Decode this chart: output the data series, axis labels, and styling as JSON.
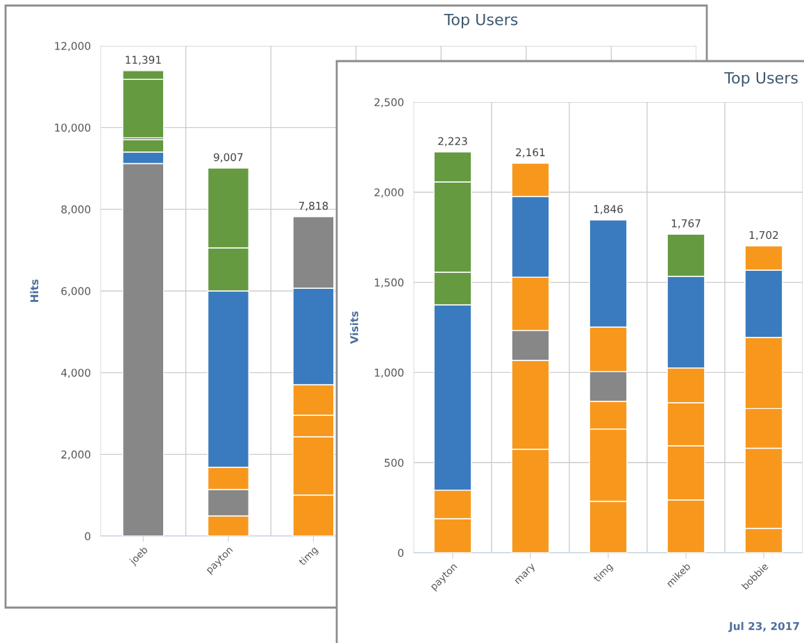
{
  "chart_data": [
    {
      "type": "bar",
      "title": "Top Users",
      "ylabel": "Hits",
      "stacked": true,
      "grid": true,
      "categories": [
        "joeb",
        "payton",
        "timg",
        null,
        null,
        null,
        null
      ],
      "series": [
        {
          "values": [
            9120,
            493,
            1003,
            null,
            null,
            null,
            null
          ],
          "colors": [
            "#878787",
            "#f7981d",
            "#f7981d",
            null,
            null,
            null,
            null
          ]
        },
        {
          "values": [
            280,
            646,
            1428,
            null,
            null,
            null,
            null
          ],
          "colors": [
            "#3a7bbf",
            "#878787",
            "#f7981d",
            null,
            null,
            null,
            null
          ]
        },
        {
          "values": [
            300,
            544,
            527,
            null,
            null,
            null,
            null
          ],
          "colors": [
            "#659a41",
            "#f7981d",
            "#f7981d",
            null,
            null,
            null,
            null
          ]
        },
        {
          "values": [
            50,
            4317,
            748,
            null,
            null,
            null,
            null
          ],
          "colors": [
            "#878787",
            "#3a7bbf",
            "#f7981d",
            null,
            null,
            null,
            null
          ]
        },
        {
          "values": [
            1430,
            1054,
            2362,
            null,
            null,
            null,
            null
          ],
          "colors": [
            "#659a41",
            "#659a41",
            "#3a7bbf",
            null,
            null,
            null,
            null
          ]
        },
        {
          "values": [
            211,
            1953,
            1750,
            null,
            null,
            null,
            null
          ],
          "colors": [
            "#659a41",
            "#659a41",
            "#878787",
            null,
            null,
            null,
            null
          ]
        }
      ],
      "totals": [
        "11,391",
        "9,007",
        "7,818",
        null,
        null,
        null,
        null
      ],
      "ylim": [
        0,
        12000
      ],
      "yticks": [
        0,
        {
          "value": 2000,
          "label": "2,000"
        },
        {
          "value": 4000,
          "label": "4,000"
        },
        {
          "value": 6000,
          "label": "6,000"
        },
        {
          "value": 8000,
          "label": "8,000"
        },
        {
          "value": 10000,
          "label": "10,000"
        },
        {
          "value": 12000,
          "label": "12,000"
        }
      ]
    },
    {
      "type": "bar",
      "title": "Top Users",
      "ylabel": "Visits",
      "stacked": true,
      "grid": true,
      "categories": [
        "payton",
        "mary",
        "timg",
        "mikeb",
        "bobbie"
      ],
      "series": [
        {
          "values": [
            189,
            574,
            285,
            293,
            135
          ],
          "colors": [
            "#f7981d",
            "#f7981d",
            "#f7981d",
            "#f7981d",
            "#f7981d"
          ]
        },
        {
          "values": [
            158,
            493,
            401,
            300,
            445
          ],
          "colors": [
            "#f7981d",
            "#f7981d",
            "#f7981d",
            "#f7981d",
            "#f7981d"
          ]
        },
        {
          "values": [
            1028,
            166,
            154,
            239,
            220
          ],
          "colors": [
            "#3a7bbf",
            "#878787",
            "#f7981d",
            "#f7981d",
            "#f7981d"
          ]
        },
        {
          "values": [
            181,
            296,
            165,
            193,
            394
          ],
          "colors": [
            "#659a41",
            "#f7981d",
            "#878787",
            "#f7981d",
            "#f7981d"
          ]
        },
        {
          "values": [
            501,
            447,
            247,
            508,
            374
          ],
          "colors": [
            "#659a41",
            "#3a7bbf",
            "#f7981d",
            "#3a7bbf",
            "#3a7bbf"
          ]
        },
        {
          "values": [
            166,
            185,
            594,
            234,
            134
          ],
          "colors": [
            "#659a41",
            "#f7981d",
            "#3a7bbf",
            "#659a41",
            "#f7981d"
          ]
        }
      ],
      "totals": [
        "2,223",
        "2,161",
        "1,846",
        "1,767",
        "1,702"
      ],
      "ylim": [
        0,
        2500
      ],
      "yticks": [
        0,
        500,
        {
          "value": 1000,
          "label": "1,000"
        },
        {
          "value": 1500,
          "label": "1,500"
        },
        {
          "value": 2000,
          "label": "2,000"
        },
        {
          "value": 2500,
          "label": "2,500"
        }
      ],
      "annotations": [
        "Jul 23, 2017"
      ]
    }
  ]
}
